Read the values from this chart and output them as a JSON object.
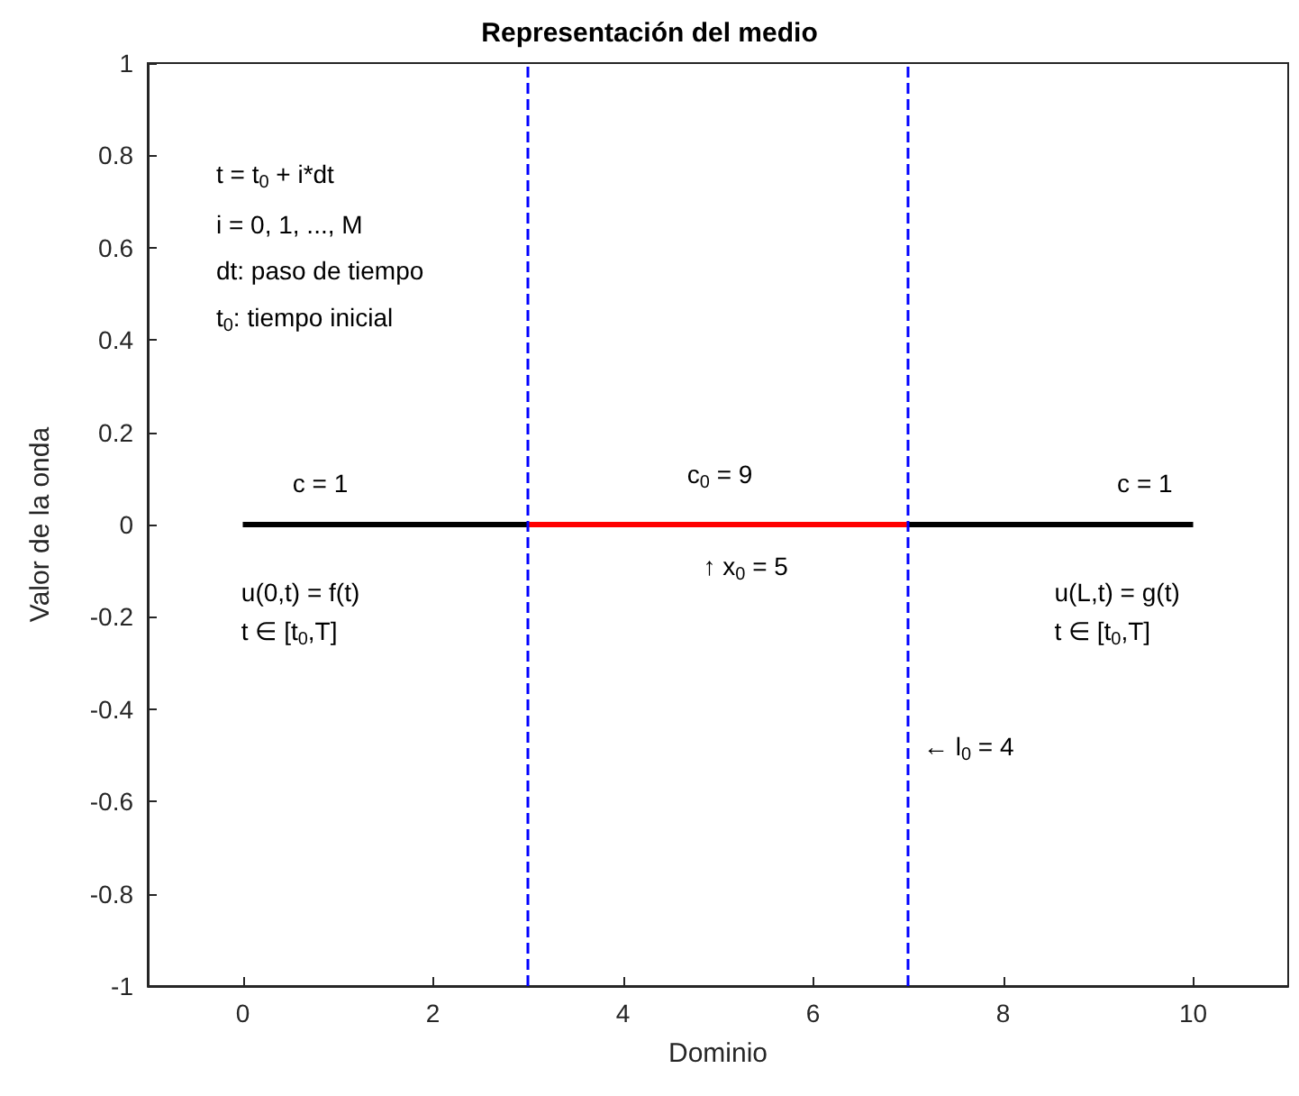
{
  "chart_data": {
    "type": "line",
    "title": "Representación del medio",
    "xlabel": "Dominio",
    "ylabel": "Valor de la onda",
    "xlim": [
      -1,
      11
    ],
    "xticks": [
      0,
      2,
      4,
      6,
      8,
      10
    ],
    "ylim": [
      -1,
      1
    ],
    "yticks": [
      -1,
      -0.8,
      -0.6,
      -0.4,
      -0.2,
      0,
      0.2,
      0.4,
      0.6,
      0.8,
      1
    ],
    "grid": false,
    "marker": "none",
    "line_style": "solid",
    "series": [
      {
        "color": "#000000",
        "x": [
          0,
          3,
          5,
          7,
          10
        ],
        "values": [
          0,
          0,
          null,
          0,
          0
        ]
      },
      {
        "color": "#ff0000",
        "x": [
          3,
          7
        ],
        "values": [
          0,
          0
        ]
      }
    ],
    "ref_lines": [
      {
        "axis": "x",
        "value": 3,
        "color": "#0000ff",
        "line_style": "dashed"
      },
      {
        "axis": "x",
        "value": 7,
        "color": "#0000ff",
        "line_style": "dashed"
      }
    ],
    "annotations": [
      "t = t$_{0}$ + i*dt",
      "i = 0, 1, ..., M",
      "dt: paso de tiempo",
      "t$_{0}$: tiempo inicial",
      "c = 1",
      "c$_{0}$ = 9",
      "c = 1",
      "u(0,t) = f(t)",
      "t ∈ [t$_{0}$,T]",
      "↑ x$_{0}$ = 5",
      "u(L,t) = g(t)",
      "t ∈ [t$_{0}$,T]",
      "← l$_{0}$ = 4"
    ]
  }
}
